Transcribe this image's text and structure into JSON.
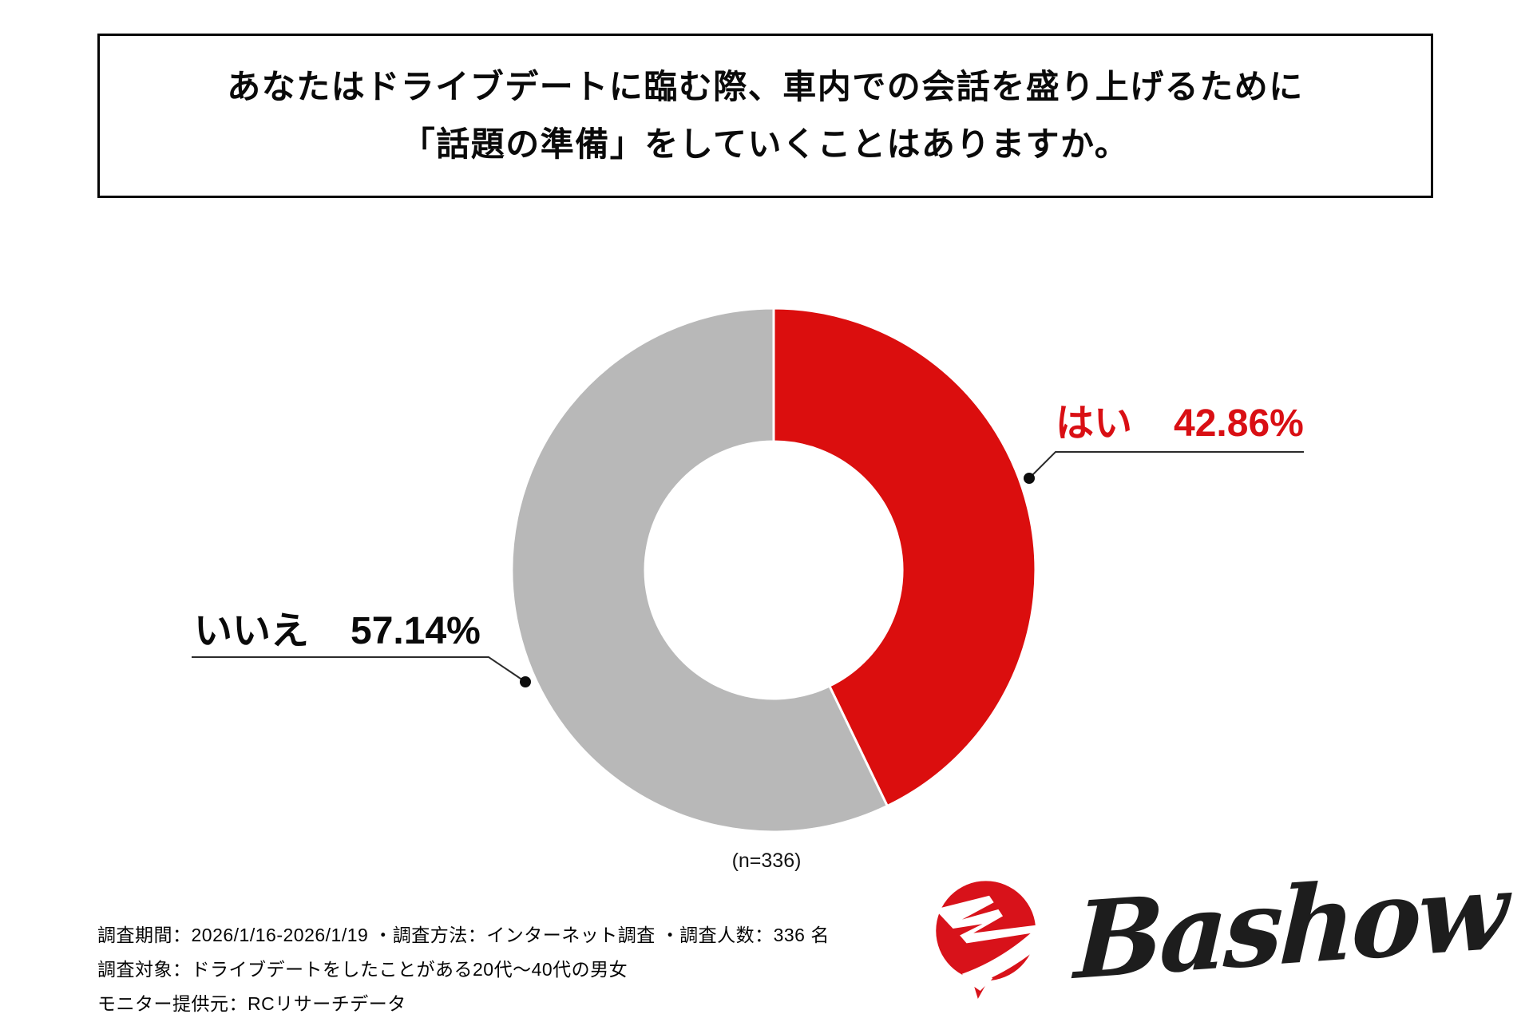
{
  "title": {
    "line1": "あなたはドライブデートに臨む際、車内での会話を盛り上げるために",
    "line2": "「話題の準備」をしていくことはありますか。"
  },
  "chart_data": {
    "type": "pie",
    "subtype": "donut",
    "labels": [
      "はい",
      "いいえ"
    ],
    "values": [
      42.86,
      57.14
    ],
    "value_labels": [
      "42.86%",
      "57.14%"
    ],
    "colors": [
      "#db0e0e",
      "#b8b8b8"
    ],
    "start_angle_deg": 0,
    "direction": "clockwise",
    "inner_radius_ratio": 0.49,
    "legend_position": "callout",
    "sample_note": "(n=336)"
  },
  "footer": {
    "line1": "調査期間：2026/1/16-2026/1/19 ・調査方法：インターネット調査 ・調査人数：336 名",
    "line2": "調査対象：ドライブデートをしたことがある20代～40代の男女",
    "line3": "モニター提供元：RCリサーチデータ"
  },
  "logo": {
    "wordmark": "Bashow"
  },
  "colors": {
    "accent_red": "#d90f14",
    "donut_red": "#db0e0e",
    "donut_gray": "#b8b8b8",
    "text_black": "#0a0a0a",
    "leader_line": "#2b2b2b",
    "logo_red": "#d8121a"
  }
}
